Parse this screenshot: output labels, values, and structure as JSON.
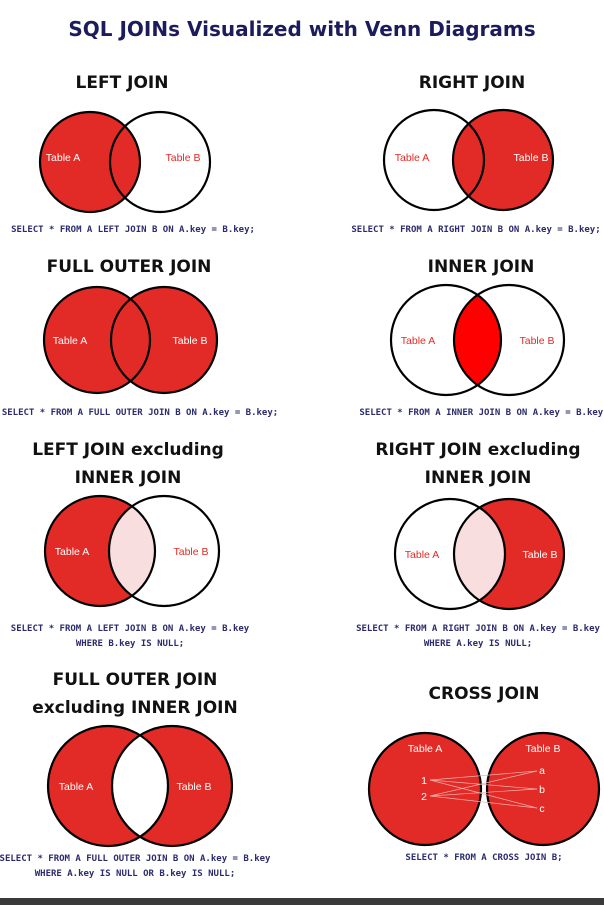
{
  "title": "SQL JOINs Visualized with Venn Diagrams",
  "colors": {
    "red": "#e22b26",
    "bright_red": "#ff0000",
    "pale": "#f8dede",
    "navy": "#1c1c5c"
  },
  "panels": [
    {
      "heading": [
        "LEFT JOIN"
      ],
      "label_a": "Table A",
      "label_b": "Table B",
      "code": [
        "SELECT * FROM A LEFT JOIN B ON A.key = B.key;"
      ]
    },
    {
      "heading": [
        "RIGHT JOIN"
      ],
      "label_a": "Table A",
      "label_b": "Table B",
      "code": [
        "SELECT * FROM A RIGHT JOIN B ON A.key = B.key;"
      ]
    },
    {
      "heading": [
        "FULL OUTER JOIN"
      ],
      "label_a": "Table A",
      "label_b": "Table B",
      "code": [
        "SELECT * FROM A FULL OUTER JOIN B ON A.key = B.key;"
      ]
    },
    {
      "heading": [
        "INNER JOIN"
      ],
      "label_a": "Table A",
      "label_b": "Table B",
      "code": [
        "SELECT * FROM A INNER JOIN B ON A.key = B.key;"
      ]
    },
    {
      "heading": [
        "LEFT JOIN excluding",
        "INNER JOIN"
      ],
      "label_a": "Table A",
      "label_b": "Table B",
      "code": [
        "SELECT * FROM A LEFT JOIN B ON A.key = B.key",
        "WHERE B.key IS NULL;"
      ]
    },
    {
      "heading": [
        "RIGHT JOIN excluding",
        "INNER JOIN"
      ],
      "label_a": "Table A",
      "label_b": "Table B",
      "code": [
        "SELECT * FROM A RIGHT JOIN B ON A.key = B.key",
        "WHERE A.key IS NULL;"
      ]
    },
    {
      "heading": [
        "FULL OUTER JOIN",
        "excluding INNER JOIN"
      ],
      "label_a": "Table A",
      "label_b": "Table B",
      "code": [
        "SELECT * FROM A FULL OUTER JOIN B ON A.key = B.key",
        "WHERE A.key IS NULL OR B.key IS NULL;"
      ]
    },
    {
      "heading": [
        "CROSS JOIN"
      ],
      "label_a": "Table A",
      "label_b": "Table B",
      "rows_a": [
        "1",
        "2"
      ],
      "rows_b": [
        "a",
        "b",
        "c"
      ],
      "code": [
        "SELECT * FROM A CROSS JOIN B;"
      ]
    }
  ]
}
